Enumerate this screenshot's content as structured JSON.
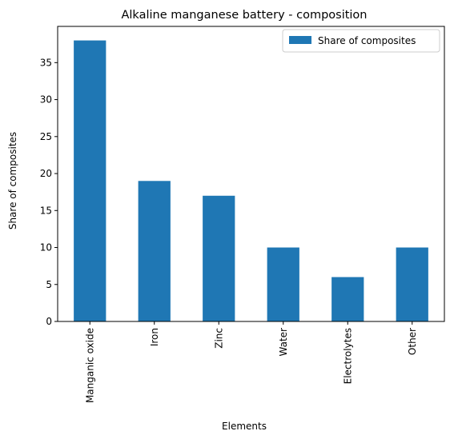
{
  "chart_data": {
    "type": "bar",
    "title": "Alkaline manganese battery - composition",
    "xlabel": "Elements",
    "ylabel": "Share of composites",
    "categories": [
      "Manganic oxide",
      "Iron",
      "Zinc",
      "Water",
      "Electrolytes",
      "Other"
    ],
    "series": [
      {
        "name": "Share of composites",
        "values": [
          38,
          19,
          17,
          10,
          6,
          10
        ],
        "color": "#1f77b4"
      }
    ],
    "ylim": [
      0,
      39.9
    ],
    "yticks": [
      0,
      5,
      10,
      15,
      20,
      25,
      30,
      35
    ],
    "grid": false,
    "legend_position": "top-right"
  }
}
